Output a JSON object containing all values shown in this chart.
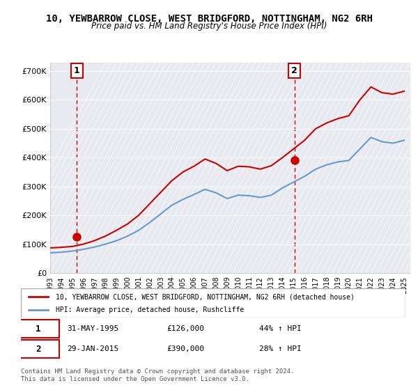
{
  "title": "10, YEWBARROW CLOSE, WEST BRIDGFORD, NOTTINGHAM, NG2 6RH",
  "subtitle": "Price paid vs. HM Land Registry's House Price Index (HPI)",
  "legend_line1": "10, YEWBARROW CLOSE, WEST BRIDGFORD, NOTTINGHAM, NG2 6RH (detached house)",
  "legend_line2": "HPI: Average price, detached house, Rushcliffe",
  "sale1_label": "1",
  "sale1_date": "31-MAY-1995",
  "sale1_price": "£126,000",
  "sale1_hpi": "44% ↑ HPI",
  "sale1_year": 1995.42,
  "sale1_value": 126000,
  "sale2_label": "2",
  "sale2_date": "29-JAN-2015",
  "sale2_price": "£390,000",
  "sale2_hpi": "28% ↑ HPI",
  "sale2_year": 2015.08,
  "sale2_value": 390000,
  "hpi_color": "#6699cc",
  "sale_color": "#cc0000",
  "vline_color": "#cc0000",
  "background_hatch_color": "#e8e8f0",
  "ylim": [
    0,
    730000
  ],
  "xlim_start": 1993,
  "xlim_end": 2025.5,
  "footer": "Contains HM Land Registry data © Crown copyright and database right 2024.\nThis data is licensed under the Open Government Licence v3.0.",
  "hpi_data_years": [
    1993,
    1994,
    1995,
    1996,
    1997,
    1998,
    1999,
    2000,
    2001,
    2002,
    2003,
    2004,
    2005,
    2006,
    2007,
    2008,
    2009,
    2010,
    2011,
    2012,
    2013,
    2014,
    2015,
    2016,
    2017,
    2018,
    2019,
    2020,
    2021,
    2022,
    2023,
    2024,
    2025
  ],
  "hpi_data_values": [
    70000,
    72000,
    76000,
    82000,
    90000,
    100000,
    112000,
    128000,
    148000,
    175000,
    205000,
    235000,
    255000,
    272000,
    290000,
    278000,
    258000,
    270000,
    268000,
    262000,
    270000,
    295000,
    315000,
    335000,
    360000,
    375000,
    385000,
    390000,
    430000,
    470000,
    455000,
    450000,
    460000
  ],
  "sale_data_years": [
    1993,
    1994,
    1995,
    1996,
    1997,
    1998,
    1999,
    2000,
    2001,
    2002,
    2003,
    2004,
    2005,
    2006,
    2007,
    2008,
    2009,
    2010,
    2011,
    2012,
    2013,
    2014,
    2015,
    2016,
    2017,
    2018,
    2019,
    2020,
    2021,
    2022,
    2023,
    2024,
    2025
  ],
  "sale_data_values": [
    87000,
    89000,
    92000,
    100000,
    112000,
    128000,
    148000,
    170000,
    200000,
    240000,
    280000,
    320000,
    350000,
    370000,
    395000,
    380000,
    355000,
    370000,
    368000,
    360000,
    372000,
    400000,
    430000,
    460000,
    500000,
    520000,
    535000,
    545000,
    600000,
    645000,
    625000,
    620000,
    630000
  ]
}
